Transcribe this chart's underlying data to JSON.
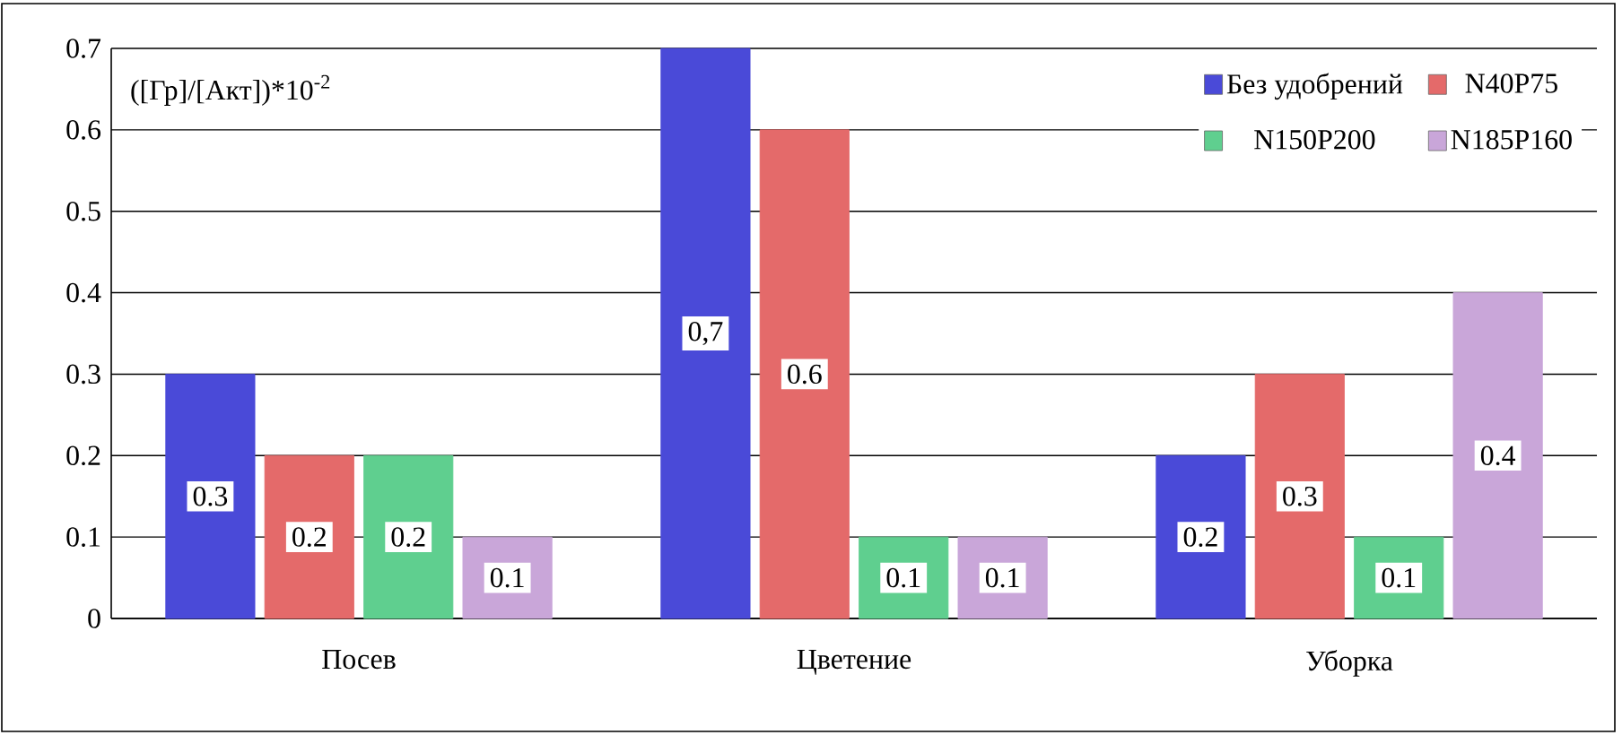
{
  "chart_data": {
    "type": "bar",
    "ylabel": "([Гр]/[Акт])*10$^{-2}$",
    "categories": [
      "Посев",
      "Цветение",
      "Уборка"
    ],
    "series": [
      {
        "name": "Без удобрений",
        "color": "#4a4ad8",
        "values": [
          0.3,
          0.7,
          0.2
        ],
        "value_labels": [
          "0.3",
          "0,7",
          "0.2"
        ]
      },
      {
        "name": "N40P75",
        "color": "#e46a6a",
        "values": [
          0.2,
          0.6,
          0.3
        ],
        "value_labels": [
          "0.2",
          "0.6",
          "0.3"
        ]
      },
      {
        "name": "N150P200",
        "color": "#5fcf8f",
        "values": [
          0.2,
          0.1,
          0.1
        ],
        "value_labels": [
          "0.2",
          "0.1",
          "0.1"
        ]
      },
      {
        "name": "N185P160",
        "color": "#c9a6d9",
        "values": [
          0.1,
          0.1,
          0.4
        ],
        "value_labels": [
          "0.1",
          "0.1",
          "0.4"
        ]
      }
    ],
    "ylim": [
      0,
      0.7
    ],
    "yticks": [
      0,
      0.1,
      0.2,
      0.3,
      0.4,
      0.5,
      0.6,
      0.7
    ],
    "grid": "y",
    "legend": "top right"
  }
}
